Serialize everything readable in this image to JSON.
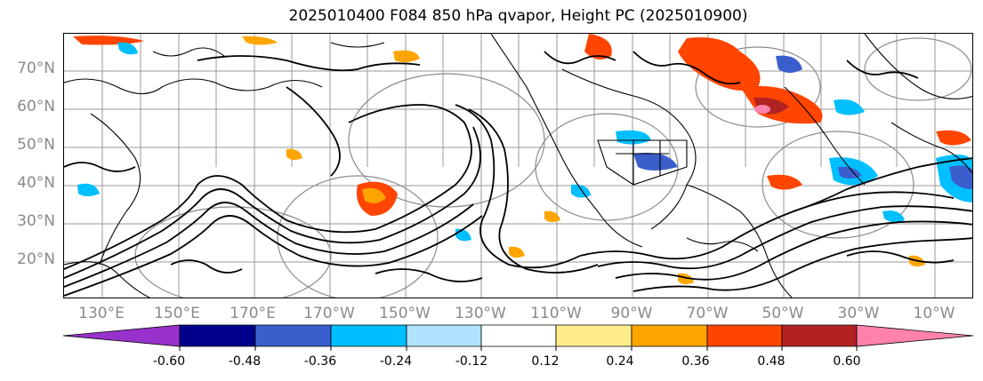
{
  "title": "2025010400 F084 850 hPa qvapor, Height PC (2025010900)",
  "lat_labels": [
    "70°N",
    "60°N",
    "50°N",
    "40°N",
    "30°N",
    "20°N"
  ],
  "lon_labels": [
    "130°E",
    "150°E",
    "170°E",
    "170°W",
    "150°W",
    "130°W",
    "110°W",
    "90°W",
    "70°W",
    "50°W",
    "30°W",
    "10°W"
  ],
  "colorbar": {
    "labels": [
      "-0.60",
      "-0.48",
      "-0.36",
      "-0.24",
      "-0.12",
      "0.12",
      "0.24",
      "0.36",
      "0.48",
      "0.60"
    ],
    "colors": [
      "#9932cc",
      "#00008b",
      "#3a5fcd",
      "#00bfff",
      "#b0e2ff",
      "#ffffff",
      "#ffec8b",
      "#ffa500",
      "#ff4500",
      "#b22222",
      "#ff82ab"
    ]
  }
}
